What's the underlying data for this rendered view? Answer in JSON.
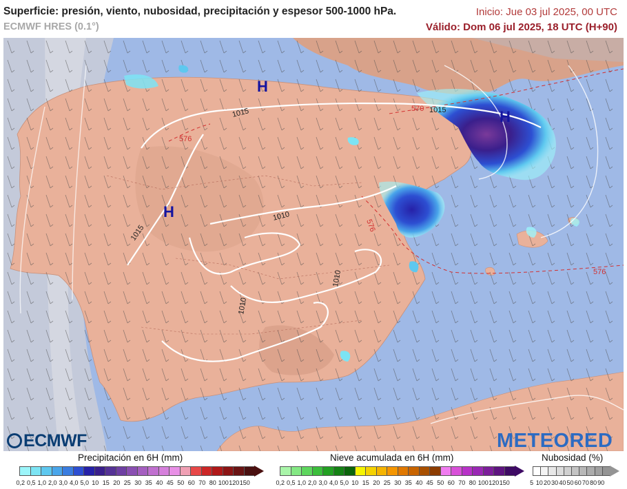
{
  "header": {
    "title": "Superficie: presión, viento, nubosidad, precipitación y espesor 500-1000 hPa.",
    "model": "ECMWF HRES (0.1°)",
    "init": "Inicio: Jue 03 jul 2025, 00 UTC",
    "valid": "Válido: Dom 06 jul 2025, 18 UTC (H+90)"
  },
  "map": {
    "pressure_centers": [
      "H",
      "H",
      "H"
    ],
    "isobar_labels": [
      "1015",
      "1015",
      "1015",
      "1010",
      "1010",
      "1010"
    ],
    "thickness_labels": [
      "570",
      "576",
      "576",
      "576"
    ],
    "logos": {
      "left": "ECMWF",
      "right": "METEORED"
    }
  },
  "legend": {
    "precip": {
      "title": "Precipitación en 6H (mm)",
      "ticks": [
        "0,2",
        "0,5",
        "1,0",
        "2,0",
        "3,0",
        "4,0",
        "5,0",
        "10",
        "15",
        "20",
        "25",
        "30",
        "35",
        "40",
        "45",
        "50",
        "60",
        "70",
        "80",
        "100",
        "120",
        "150"
      ],
      "colors": [
        "#9cf5fa",
        "#7ce4f4",
        "#5ec8ef",
        "#4aa6ea",
        "#3a7de0",
        "#2d4fd2",
        "#2621a8",
        "#3a1f8c",
        "#553296",
        "#6e3fa3",
        "#8a4fb2",
        "#a55fc0",
        "#c070cf",
        "#d680dc",
        "#e890e6",
        "#f0a0b4",
        "#e84848",
        "#cc2626",
        "#b01818",
        "#8c1414",
        "#6a1414",
        "#4a1010"
      ]
    },
    "snow": {
      "title": "Nieve acumulada en 6H (mm)",
      "ticks": [
        "0,2",
        "0,5",
        "1,0",
        "2,0",
        "3,0",
        "4,0",
        "5,0",
        "10",
        "15",
        "20",
        "25",
        "30",
        "35",
        "40",
        "45",
        "50",
        "60",
        "70",
        "80",
        "100",
        "120",
        "150"
      ],
      "colors": [
        "#a9f5a9",
        "#84e884",
        "#5ed65e",
        "#3cbe3c",
        "#22a022",
        "#148214",
        "#0a640a",
        "#f5f500",
        "#f5d200",
        "#f5b400",
        "#f59600",
        "#e07800",
        "#c86400",
        "#a85000",
        "#8c3c00",
        "#f07cf0",
        "#d850d8",
        "#b832c8",
        "#9a28b4",
        "#7c1e9a",
        "#5e1480",
        "#3e0a64"
      ]
    },
    "cloud": {
      "title": "Nubosidad (%)",
      "ticks": [
        "5",
        "10",
        "20",
        "30",
        "40",
        "50",
        "60",
        "70",
        "80",
        "90"
      ],
      "colors": [
        "#ffffff",
        "#f4f4f4",
        "#e8e8e8",
        "#dcdcdc",
        "#d0d0d0",
        "#c4c4c4",
        "#b8b8b8",
        "#acacac",
        "#a0a0a0",
        "#949494"
      ]
    }
  }
}
